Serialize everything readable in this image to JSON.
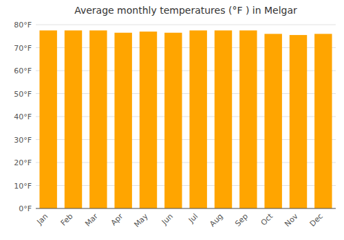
{
  "chart_data": {
    "type": "bar",
    "title": "Average monthly temperatures (°F ) in Melgar",
    "categories": [
      "Jan",
      "Feb",
      "Mar",
      "Apr",
      "May",
      "Jun",
      "Jul",
      "Aug",
      "Sep",
      "Oct",
      "Nov",
      "Dec"
    ],
    "values": [
      77.5,
      77.5,
      77.5,
      76.5,
      77.0,
      76.5,
      77.5,
      77.5,
      77.5,
      76.0,
      75.5,
      76.0
    ],
    "color": "#FFA500",
    "ylim": [
      0,
      80
    ],
    "yticks": [
      {
        "value": 0,
        "label": "0°F"
      },
      {
        "value": 10,
        "label": "10°F"
      },
      {
        "value": 20,
        "label": "20°F"
      },
      {
        "value": 30,
        "label": "30°F"
      },
      {
        "value": 40,
        "label": "40°F"
      },
      {
        "value": 50,
        "label": "50°F"
      },
      {
        "value": 60,
        "label": "60°F"
      },
      {
        "value": 70,
        "label": "70°F"
      },
      {
        "value": 80,
        "label": "80°F"
      }
    ],
    "grid": true
  }
}
